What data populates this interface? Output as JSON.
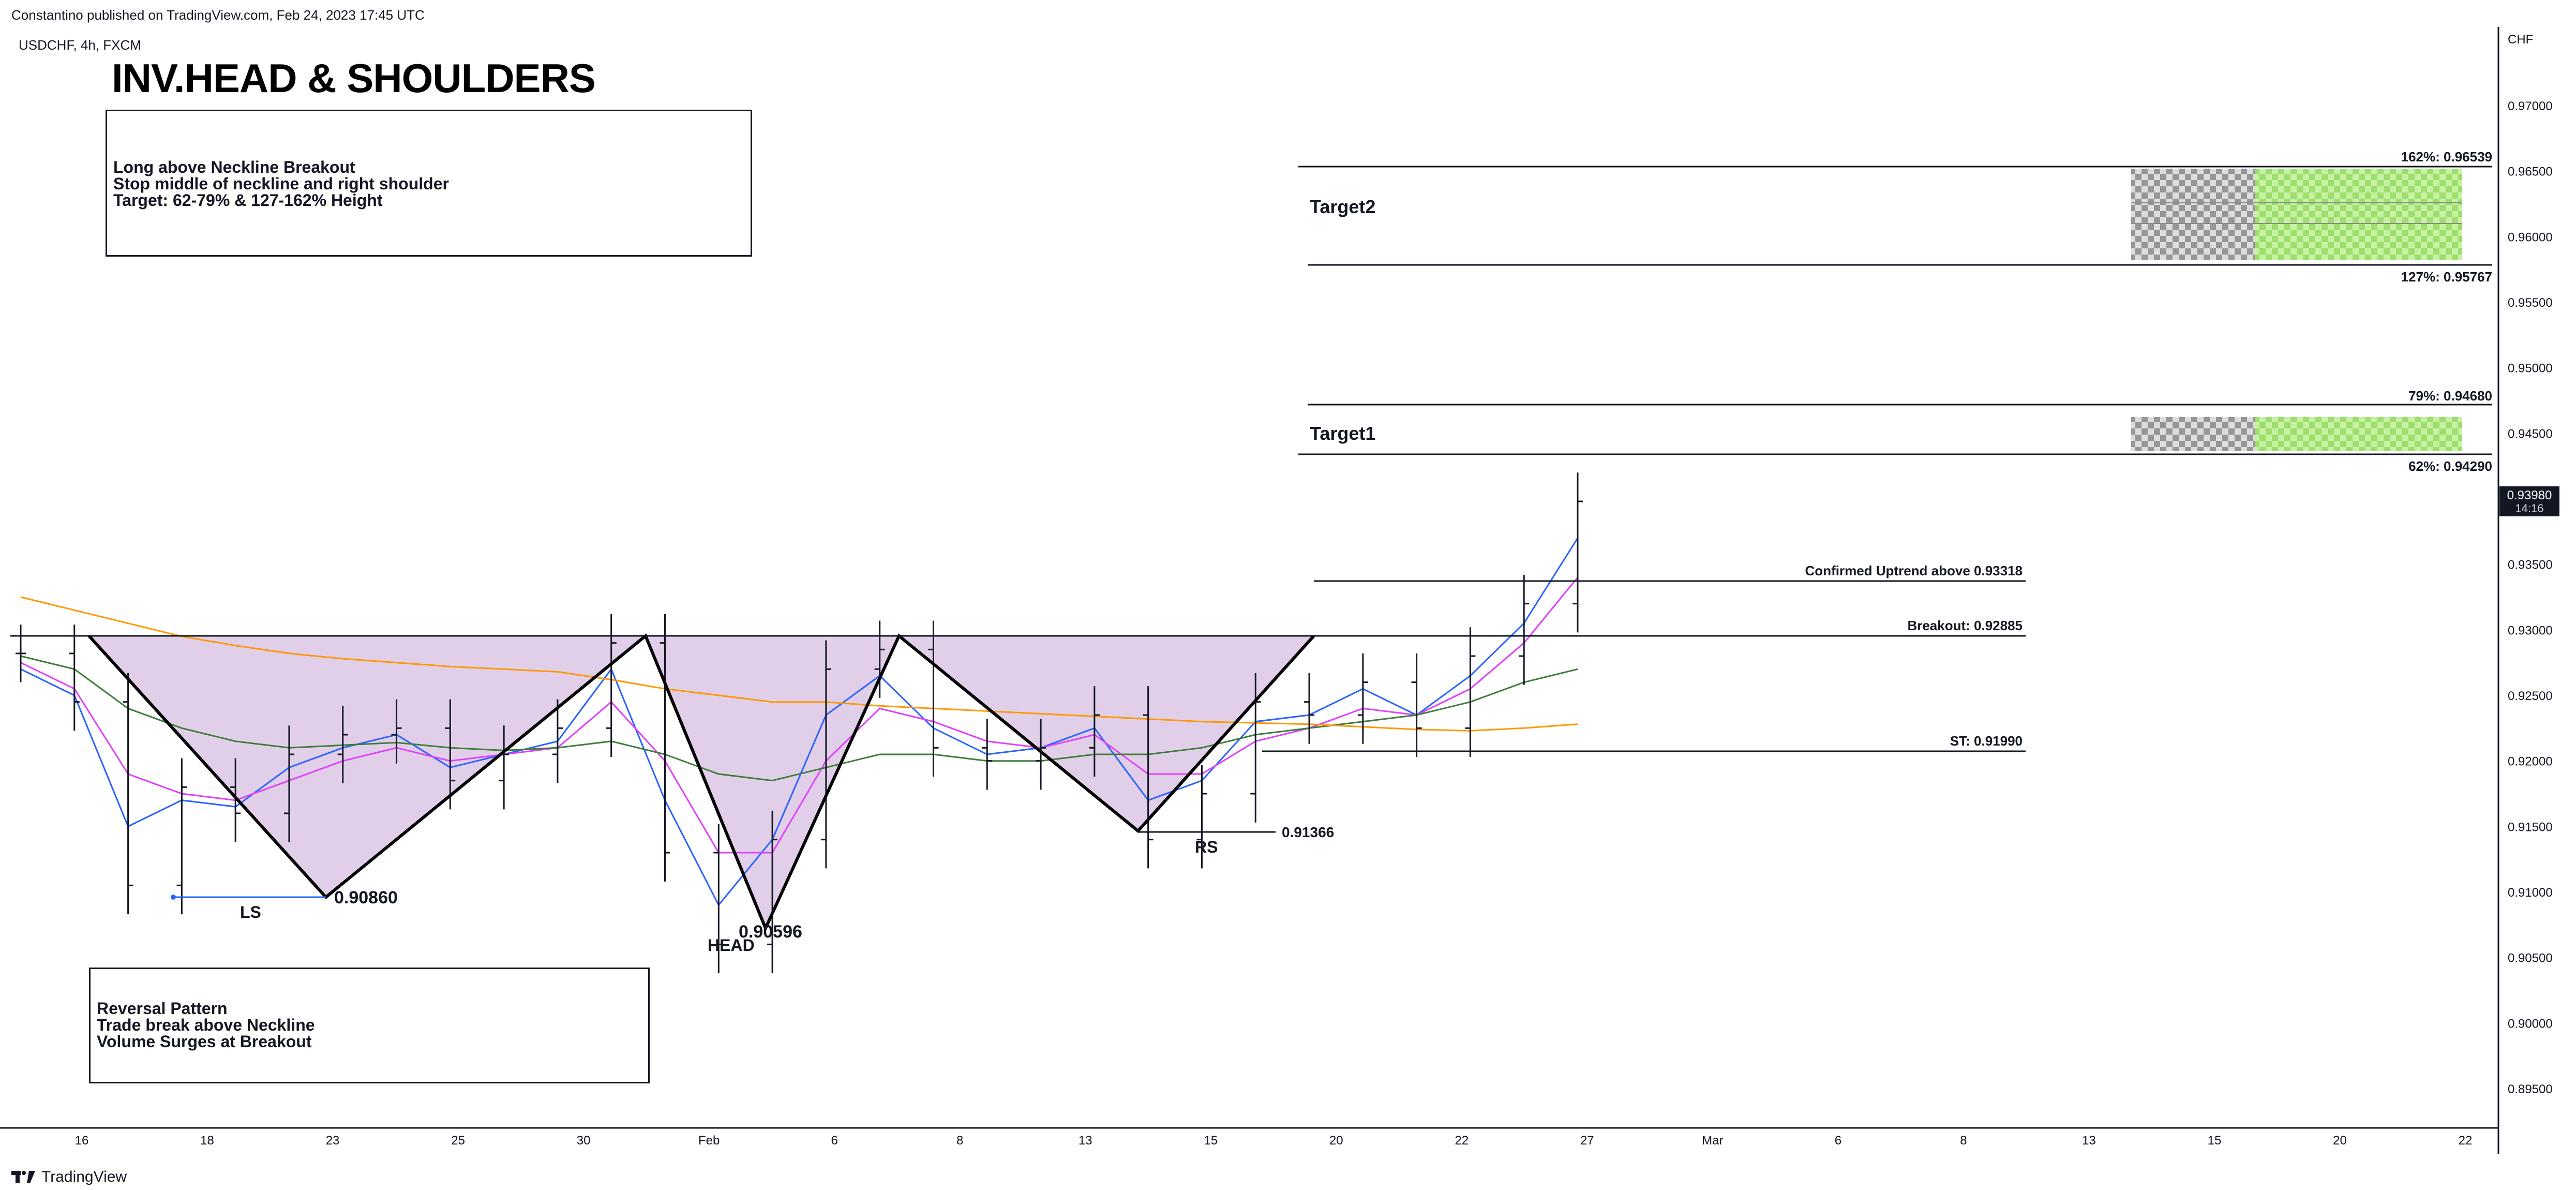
{
  "header": {
    "published": "Constantino published on TradingView.com, Feb 24, 2023 17:45 UTC",
    "symbol": "USDCHF, 4h, FXCM"
  },
  "footer": {
    "brand": "TradingView"
  },
  "annotations": {
    "title": "INV.HEAD & SHOULDERS",
    "rules_box": [
      "Long above Neckline Breakout",
      "Stop middle of neckline and right shoulder",
      "Target: 62-79% & 127-162% Height"
    ],
    "pattern_box": [
      "Reversal Pattern",
      "Trade break above Neckline",
      "Volume Surges at Breakout"
    ],
    "target2": "Target2",
    "target1": "Target1",
    "fib_162": "162%: 0.96539",
    "fib_127": "127%: 0.95767",
    "fib_79": "79%: 0.94680",
    "fib_62": "62%: 0.94290",
    "confirmed": "Confirmed Uptrend above 0.93318",
    "breakout": "Breakout: 0.92885",
    "stop": "ST: 0.91990",
    "rs_level": "0.91366",
    "ls_level": "0.90860",
    "head_level": "0.90596",
    "ls": "LS",
    "head": "HEAD",
    "rs": "RS"
  },
  "chart_data": {
    "type": "line",
    "title": "INV.HEAD & SHOULDERS",
    "symbol": "USDCHF, 4h, FXCM",
    "currency_label": "CHF",
    "ylim": [
      0.892,
      0.976
    ],
    "y_ticks": [
      "0.97000",
      "0.96500",
      "0.96000",
      "0.95500",
      "0.95000",
      "0.94500",
      "0.94000",
      "0.93500",
      "0.93000",
      "0.92500",
      "0.92000",
      "0.91500",
      "0.91000",
      "0.90500",
      "0.90000",
      "0.89500"
    ],
    "x_ticks": [
      "16",
      "18",
      "23",
      "25",
      "30",
      "Feb",
      "6",
      "8",
      "13",
      "15",
      "20",
      "22",
      "27",
      "Mar",
      "6",
      "8",
      "13",
      "15",
      "20",
      "22"
    ],
    "last_price": "0.93980",
    "countdown": "14:16",
    "series": [
      {
        "kind": "price",
        "x": [
          "Jan 16",
          "Jan 17",
          "Jan 18",
          "Jan 19",
          "Jan 20",
          "Jan 23",
          "Jan 24",
          "Jan 25",
          "Jan 26",
          "Jan 27",
          "Jan 30",
          "Jan 31",
          "Feb 1",
          "Feb 2",
          "Feb 3",
          "Feb 6",
          "Feb 7",
          "Feb 8",
          "Feb 9",
          "Feb 10",
          "Feb 13",
          "Feb 14",
          "Feb 15",
          "Feb 16",
          "Feb 17",
          "Feb 20",
          "Feb 21",
          "Feb 22",
          "Feb 23",
          "Feb 24"
        ],
        "values": [
          0.9282,
          0.9245,
          0.9105,
          0.918,
          0.916,
          0.9205,
          0.922,
          0.9225,
          0.9185,
          0.9205,
          0.9225,
          0.929,
          0.913,
          0.906,
          0.914,
          0.927,
          0.9285,
          0.921,
          0.92,
          0.921,
          0.9235,
          0.914,
          0.9175,
          0.9245,
          0.9235,
          0.926,
          0.9225,
          0.928,
          0.932,
          0.9398
        ]
      },
      {
        "kind": "ema_fast",
        "color": "#2962ff",
        "values": [
          0.927,
          0.925,
          0.915,
          0.917,
          0.9165,
          0.9195,
          0.921,
          0.922,
          0.9195,
          0.9205,
          0.9215,
          0.927,
          0.917,
          0.909,
          0.914,
          0.9235,
          0.9265,
          0.9225,
          0.9205,
          0.921,
          0.9225,
          0.917,
          0.9185,
          0.923,
          0.9235,
          0.9255,
          0.9235,
          0.9265,
          0.9305,
          0.937
        ]
      },
      {
        "kind": "ema_mid",
        "color": "#e040fb",
        "values": [
          0.9275,
          0.9255,
          0.919,
          0.9175,
          0.917,
          0.9185,
          0.92,
          0.921,
          0.92,
          0.9205,
          0.921,
          0.9245,
          0.92,
          0.913,
          0.913,
          0.92,
          0.924,
          0.923,
          0.9215,
          0.921,
          0.922,
          0.919,
          0.919,
          0.9215,
          0.9225,
          0.924,
          0.9235,
          0.9255,
          0.929,
          0.934
        ]
      },
      {
        "kind": "sma_slow",
        "color": "#3e7d3a",
        "values": [
          0.928,
          0.927,
          0.924,
          0.9225,
          0.9215,
          0.921,
          0.9212,
          0.9214,
          0.921,
          0.9208,
          0.921,
          0.9215,
          0.9205,
          0.919,
          0.9185,
          0.9195,
          0.9205,
          0.9205,
          0.92,
          0.92,
          0.9205,
          0.9205,
          0.921,
          0.922,
          0.9225,
          0.923,
          0.9235,
          0.9245,
          0.926,
          0.927
        ]
      },
      {
        "kind": "sma_200",
        "color": "#ff9800",
        "values": [
          0.9325,
          0.9315,
          0.9305,
          0.9295,
          0.9288,
          0.9282,
          0.9278,
          0.9275,
          0.9272,
          0.927,
          0.9268,
          0.9262,
          0.9255,
          0.925,
          0.9245,
          0.9245,
          0.9242,
          0.924,
          0.9238,
          0.9236,
          0.9234,
          0.9232,
          0.923,
          0.9229,
          0.9228,
          0.9226,
          0.9224,
          0.9223,
          0.9225,
          0.9228
        ]
      }
    ],
    "levels": [
      {
        "label": "162%",
        "value": 0.96539
      },
      {
        "label": "127%",
        "value": 0.95767
      },
      {
        "label": "79%",
        "value": 0.9468
      },
      {
        "label": "62%",
        "value": 0.9429
      },
      {
        "label": "Confirmed Uptrend",
        "value": 0.93318
      },
      {
        "label": "Breakout",
        "value": 0.92885
      },
      {
        "label": "ST",
        "value": 0.9199
      },
      {
        "label": "RS",
        "value": 0.91366
      },
      {
        "label": "LS",
        "value": 0.9086
      },
      {
        "label": "HEAD",
        "value": 0.90596
      }
    ]
  }
}
